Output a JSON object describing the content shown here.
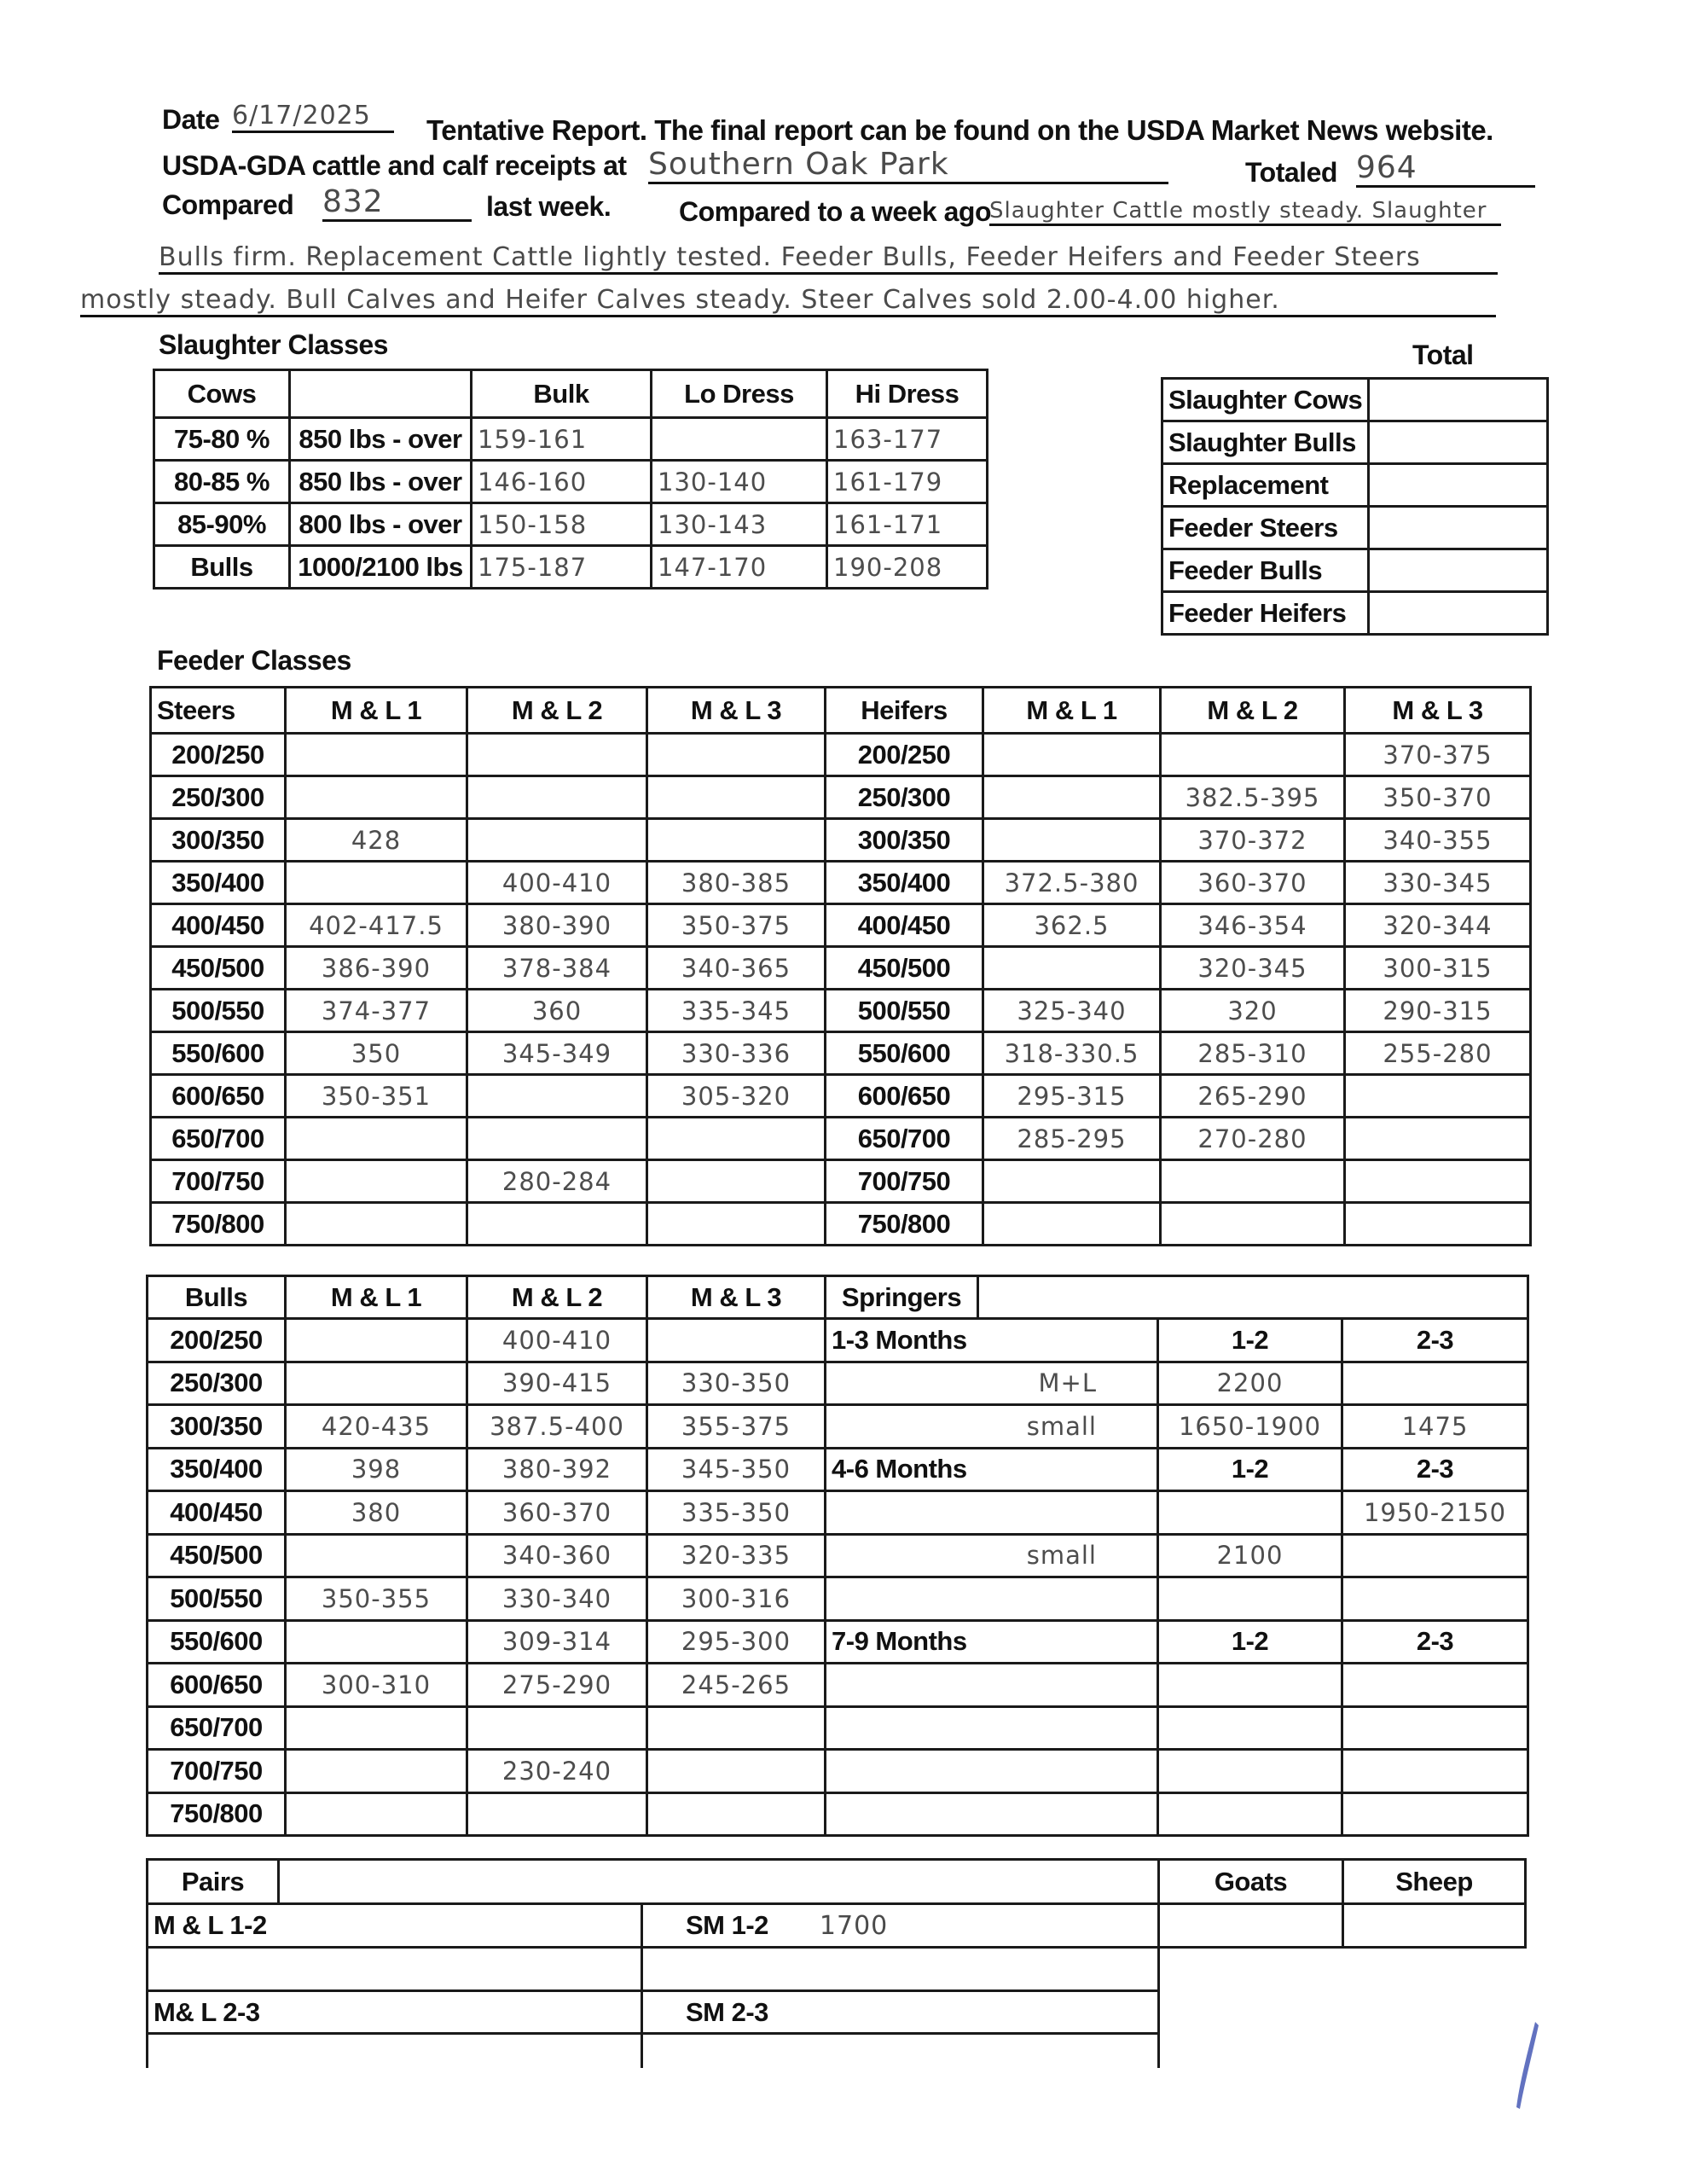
{
  "header": {
    "date_label": "Date",
    "date_value": "6/17/2025",
    "notice": "Tentative Report. The final report can be found on the USDA Market News website.",
    "receipts_label": "USDA-GDA cattle and calf receipts at",
    "location": "Southern Oak Park",
    "totaled_label": "Totaled",
    "totaled_value": "964",
    "compared_label": "Compared",
    "compared_value": "832",
    "last_week_label": "last week.",
    "week_ago_label": "Compared to a week ago",
    "comments_line1": "Slaughter Cattle mostly steady. Slaughter",
    "comments_line2": "Bulls firm. Replacement Cattle lightly tested. Feeder Bulls, Feeder Heifers and Feeder Steers",
    "comments_line3": "mostly steady. Bull Calves and Heifer Calves steady. Steer Calves sold 2.00-4.00 higher."
  },
  "slaughter": {
    "title": "Slaughter Classes",
    "headers": [
      "Cows",
      "",
      "Bulk",
      "Lo Dress",
      "Hi Dress"
    ],
    "rows": [
      [
        "75-80 %",
        "850 lbs - over",
        "159-161",
        "",
        "163-177"
      ],
      [
        "80-85 %",
        "850 lbs - over",
        "146-160",
        "130-140",
        "161-179"
      ],
      [
        "85-90%",
        "800 lbs - over",
        "150-158",
        "130-143",
        "161-171"
      ],
      [
        "Bulls",
        "1000/2100 lbs",
        "175-187",
        "147-170",
        "190-208"
      ]
    ]
  },
  "totals": {
    "title": "Total",
    "rows": [
      [
        "Slaughter Cows",
        ""
      ],
      [
        "Slaughter Bulls",
        ""
      ],
      [
        "Replacement",
        ""
      ],
      [
        "Feeder Steers",
        ""
      ],
      [
        "Feeder Bulls",
        ""
      ],
      [
        "Feeder Heifers",
        ""
      ]
    ]
  },
  "feeder": {
    "title": "Feeder Classes",
    "headers": [
      "Steers",
      "M & L 1",
      "M & L 2",
      "M & L 3",
      "Heifers",
      "M & L 1",
      "M & L 2",
      "M & L 3"
    ],
    "rows": [
      [
        "200/250",
        "",
        "",
        "",
        "200/250",
        "",
        "",
        "370-375"
      ],
      [
        "250/300",
        "",
        "",
        "",
        "250/300",
        "",
        "382.5-395",
        "350-370"
      ],
      [
        "300/350",
        "428",
        "",
        "",
        "300/350",
        "",
        "370-372",
        "340-355"
      ],
      [
        "350/400",
        "",
        "400-410",
        "380-385",
        "350/400",
        "372.5-380",
        "360-370",
        "330-345"
      ],
      [
        "400/450",
        "402-417.5",
        "380-390",
        "350-375",
        "400/450",
        "362.5",
        "346-354",
        "320-344"
      ],
      [
        "450/500",
        "386-390",
        "378-384",
        "340-365",
        "450/500",
        "",
        "320-345",
        "300-315"
      ],
      [
        "500/550",
        "374-377",
        "360",
        "335-345",
        "500/550",
        "325-340",
        "320",
        "290-315"
      ],
      [
        "550/600",
        "350",
        "345-349",
        "330-336",
        "550/600",
        "318-330.5",
        "285-310",
        "255-280"
      ],
      [
        "600/650",
        "350-351",
        "",
        "305-320",
        "600/650",
        "295-315",
        "265-290",
        ""
      ],
      [
        "650/700",
        "",
        "",
        "",
        "650/700",
        "285-295",
        "270-280",
        ""
      ],
      [
        "700/750",
        "",
        "280-284",
        "",
        "700/750",
        "",
        "",
        ""
      ],
      [
        "750/800",
        "",
        "",
        "",
        "750/800",
        "",
        "",
        ""
      ]
    ]
  },
  "bulls": {
    "headers": [
      "Bulls",
      "M & L 1",
      "M & L 2",
      "M & L 3"
    ],
    "rows": [
      [
        "200/250",
        "",
        "400-410",
        ""
      ],
      [
        "250/300",
        "",
        "390-415",
        "330-350"
      ],
      [
        "300/350",
        "420-435",
        "387.5-400",
        "355-375"
      ],
      [
        "350/400",
        "398",
        "380-392",
        "345-350"
      ],
      [
        "400/450",
        "380",
        "360-370",
        "335-350"
      ],
      [
        "450/500",
        "",
        "340-360",
        "320-335"
      ],
      [
        "500/550",
        "350-355",
        "330-340",
        "300-316"
      ],
      [
        "550/600",
        "",
        "309-314",
        "295-300"
      ],
      [
        "600/650",
        "300-310",
        "275-290",
        "245-265"
      ],
      [
        "650/700",
        "",
        "",
        ""
      ],
      [
        "700/750",
        "",
        "230-240",
        ""
      ],
      [
        "750/800",
        "",
        "",
        ""
      ]
    ]
  },
  "springers": {
    "title": "Springers",
    "rows": [
      [
        "1-3 Months",
        "1-2",
        "2-3"
      ],
      [
        "M+L",
        "2200",
        ""
      ],
      [
        "small",
        "1650-1900",
        "1475"
      ],
      [
        "4-6 Months",
        "1-2",
        "2-3"
      ],
      [
        "",
        "",
        "1950-2150"
      ],
      [
        "small",
        "2100",
        ""
      ],
      [
        "",
        "",
        ""
      ],
      [
        "7-9 Months",
        "1-2",
        "2-3"
      ],
      [
        "",
        "",
        ""
      ],
      [
        "",
        "",
        ""
      ],
      [
        "",
        "",
        ""
      ],
      [
        "",
        "",
        ""
      ]
    ]
  },
  "pairs": {
    "title": "Pairs",
    "goats_label": "Goats",
    "sheep_label": "Sheep",
    "ml12_label": "M & L 1-2",
    "sm12_label": "SM 1-2",
    "sm12_value": "1700",
    "ml23_label": "M& L 2-3",
    "sm23_label": "SM 2-3"
  }
}
